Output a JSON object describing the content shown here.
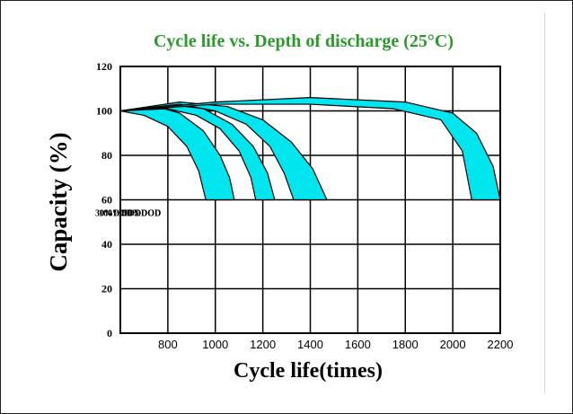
{
  "chart_data": {
    "type": "area",
    "title": "Cycle life vs. Depth of discharge (25°C)",
    "xlabel": "Cycle life(times)",
    "ylabel": "Capacity (%)",
    "xlim": [
      600,
      2200
    ],
    "ylim": [
      0,
      120
    ],
    "x_ticks": [
      "800",
      "1000",
      "1200",
      "1400",
      "1600",
      "1800",
      "2000",
      "2200"
    ],
    "y_ticks": [
      "0",
      "20",
      "40",
      "60",
      "80",
      "100",
      "120"
    ],
    "grid": true,
    "band_color": "#00e5ee",
    "series": [
      {
        "name": "100%DOD",
        "label": "100%DOD",
        "x_upper": [
          600,
          750,
          850,
          950,
          1020,
          1060,
          1080
        ],
        "y_upper": [
          100,
          102,
          99,
          91,
          80,
          70,
          60
        ],
        "x_lower": [
          600,
          700,
          800,
          880,
          930,
          960
        ],
        "y_lower": [
          100,
          98,
          93,
          84,
          73,
          60
        ]
      },
      {
        "name": "75%DOD",
        "label": "75%DOD",
        "x_upper": [
          600,
          800,
          950,
          1070,
          1160,
          1220,
          1250
        ],
        "y_upper": [
          100,
          103,
          101,
          94,
          84,
          72,
          60
        ],
        "x_lower": [
          600,
          800,
          920,
          1020,
          1100,
          1150,
          1170
        ],
        "y_lower": [
          100,
          101,
          98,
          92,
          82,
          70,
          60
        ]
      },
      {
        "name": "50%DOD",
        "label": "50%DOD",
        "x_upper": [
          600,
          850,
          1050,
          1200,
          1320,
          1410,
          1470
        ],
        "y_upper": [
          100,
          104,
          102,
          96,
          86,
          74,
          60
        ],
        "x_lower": [
          600,
          850,
          1000,
          1130,
          1230,
          1290,
          1330
        ],
        "y_lower": [
          100,
          103,
          100,
          94,
          84,
          72,
          60
        ]
      },
      {
        "name": "30%DOD",
        "label": "30%DOD",
        "x_upper": [
          600,
          1000,
          1400,
          1800,
          2000,
          2100,
          2170,
          2200
        ],
        "y_upper": [
          100,
          104,
          106,
          104,
          99,
          90,
          75,
          60
        ],
        "x_lower": [
          600,
          1000,
          1400,
          1750,
          1950,
          2040,
          2080
        ],
        "y_lower": [
          100,
          103,
          103,
          101,
          96,
          82,
          60
        ]
      }
    ]
  }
}
